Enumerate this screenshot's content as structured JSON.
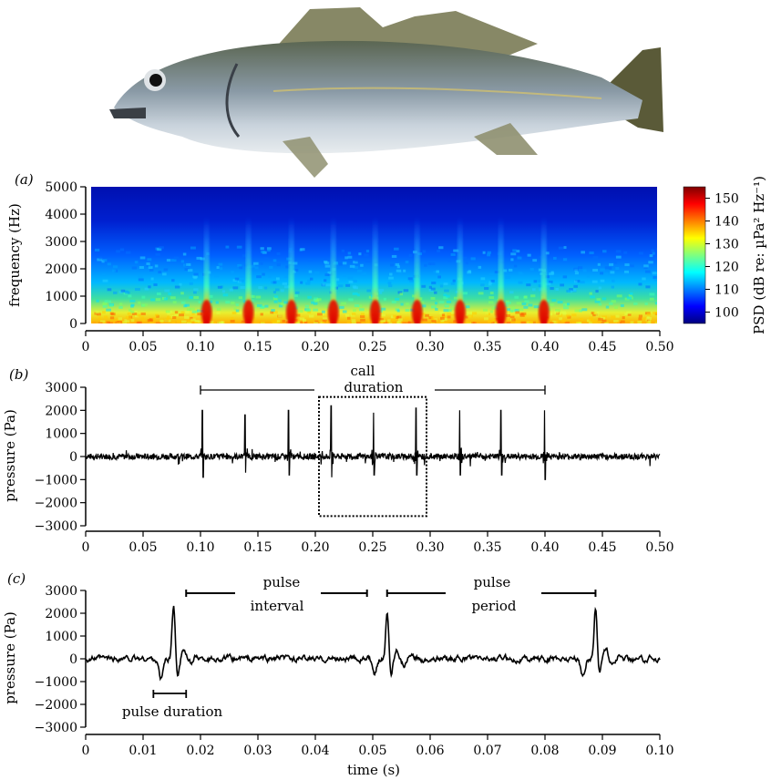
{
  "chart_data": [
    {
      "type": "heatmap",
      "panel_label": "(a)",
      "ylabel": "frequency (Hz)",
      "xlim": [
        0,
        0.5
      ],
      "ylim": [
        0,
        5000
      ],
      "xticks": [
        "0",
        "0.05",
        "0.10",
        "0.15",
        "0.20",
        "0.25",
        "0.30",
        "0.35",
        "0.40",
        "0.45",
        "0.50"
      ],
      "yticks": [
        "0",
        "1000",
        "2000",
        "3000",
        "4000",
        "5000"
      ],
      "pulse_times": [
        0.102,
        0.139,
        0.177,
        0.214,
        0.251,
        0.288,
        0.326,
        0.362,
        0.4
      ],
      "colorbar": {
        "label": "PSD (dB re: µPa² Hz⁻¹)",
        "ticks": [
          "100",
          "110",
          "120",
          "130",
          "140",
          "150"
        ],
        "range": [
          95,
          155
        ],
        "colors": [
          "#00007f",
          "#0000ff",
          "#007fff",
          "#00ffff",
          "#7fff7f",
          "#ffff00",
          "#ff7f00",
          "#ff0000",
          "#7f0000"
        ]
      }
    },
    {
      "type": "line",
      "panel_label": "(b)",
      "ylabel": "pressure (Pa)",
      "xlim": [
        0,
        0.5
      ],
      "ylim": [
        -3000,
        3000
      ],
      "xticks": [
        "0",
        "0.05",
        "0.10",
        "0.15",
        "0.20",
        "0.25",
        "0.30",
        "0.35",
        "0.40",
        "0.45",
        "0.50"
      ],
      "yticks": [
        "−3000",
        "−2000",
        "−1000",
        "0",
        "1000",
        "2000",
        "3000"
      ],
      "pulses": [
        {
          "t": 0.102,
          "peak": 2000,
          "trough": -900
        },
        {
          "t": 0.139,
          "peak": 1800,
          "trough": -700
        },
        {
          "t": 0.177,
          "peak": 2000,
          "trough": -800
        },
        {
          "t": 0.214,
          "peak": 2200,
          "trough": -900
        },
        {
          "t": 0.251,
          "peak": 1900,
          "trough": -800
        },
        {
          "t": 0.288,
          "peak": 2100,
          "trough": -800
        },
        {
          "t": 0.326,
          "peak": 2000,
          "trough": -800
        },
        {
          "t": 0.362,
          "peak": 2000,
          "trough": -800
        },
        {
          "t": 0.4,
          "peak": 2000,
          "trough": -1000
        }
      ],
      "annotation": {
        "line1": "call",
        "line2": "duration",
        "span": [
          0.1,
          0.4
        ],
        "box_x": [
          0.2,
          0.3
        ],
        "box_y": [
          -2500,
          2500
        ]
      }
    },
    {
      "type": "line",
      "panel_label": "(c)",
      "xlabel": "time (s)",
      "ylabel": "pressure (Pa)",
      "xlim": [
        0,
        0.1
      ],
      "ylim": [
        -3000,
        3000
      ],
      "xticks": [
        "0",
        "0.01",
        "0.02",
        "0.03",
        "0.04",
        "0.05",
        "0.06",
        "0.07",
        "0.08",
        "0.09",
        "0.10"
      ],
      "yticks": [
        "−3000",
        "−2000",
        "−1000",
        "0",
        "1000",
        "2000",
        "3000"
      ],
      "pulses": [
        {
          "t": 0.0153,
          "peak": 2300,
          "trough": -900
        },
        {
          "t": 0.0525,
          "peak": 2000,
          "trough": -800
        },
        {
          "t": 0.0888,
          "peak": 2200,
          "trough": -800
        }
      ],
      "annotations": {
        "pulse_interval": {
          "line1": "pulse",
          "line2": "interval",
          "span": [
            0.0175,
            0.049
          ]
        },
        "pulse_period": {
          "line1": "pulse",
          "line2": "period",
          "span": [
            0.0525,
            0.0888
          ]
        },
        "pulse_duration": {
          "text": "pulse duration",
          "span": [
            0.0118,
            0.0175
          ]
        }
      }
    }
  ]
}
